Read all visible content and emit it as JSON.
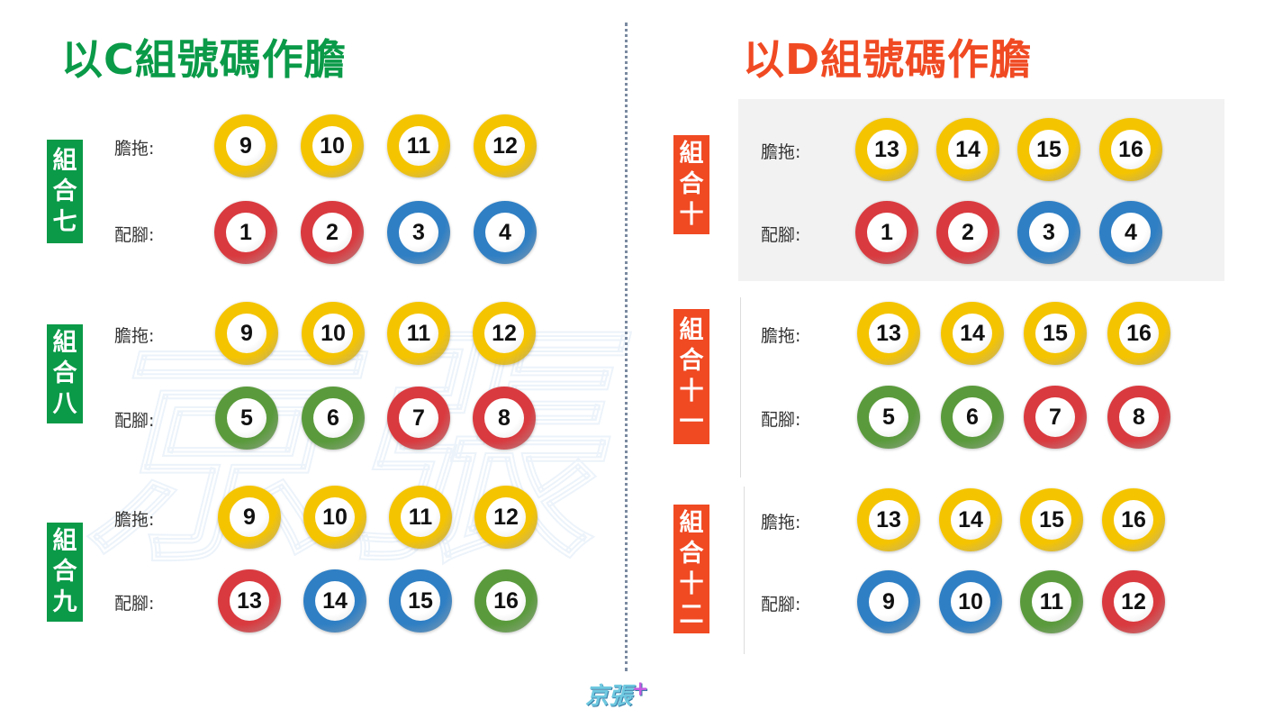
{
  "left": {
    "title": "以C組號碼作膽",
    "color": "#0a9a48",
    "groups": [
      {
        "label": "組合七",
        "dan": [
          9,
          10,
          11,
          12
        ],
        "pei": [
          1,
          2,
          3,
          4
        ],
        "dan_colors": [
          "yellow",
          "yellow",
          "yellow",
          "yellow"
        ],
        "pei_colors": [
          "red",
          "red",
          "blue",
          "blue"
        ]
      },
      {
        "label": "組合八",
        "dan": [
          9,
          10,
          11,
          12
        ],
        "pei": [
          5,
          6,
          7,
          8
        ],
        "dan_colors": [
          "yellow",
          "yellow",
          "yellow",
          "yellow"
        ],
        "pei_colors": [
          "green",
          "green",
          "red",
          "red"
        ]
      },
      {
        "label": "組合九",
        "dan": [
          9,
          10,
          11,
          12
        ],
        "pei": [
          13,
          14,
          15,
          16
        ],
        "dan_colors": [
          "yellow",
          "yellow",
          "yellow",
          "yellow"
        ],
        "pei_colors": [
          "red",
          "blue",
          "blue",
          "green"
        ]
      }
    ]
  },
  "right": {
    "title": "以D組號碼作膽",
    "color": "#f04a23",
    "groups": [
      {
        "label": "組合十",
        "dan": [
          13,
          14,
          15,
          16
        ],
        "pei": [
          1,
          2,
          3,
          4
        ],
        "dan_colors": [
          "yellow",
          "yellow",
          "yellow",
          "yellow"
        ],
        "pei_colors": [
          "red",
          "red",
          "blue",
          "blue"
        ]
      },
      {
        "label": "組合十一",
        "dan": [
          13,
          14,
          15,
          16
        ],
        "pei": [
          5,
          6,
          7,
          8
        ],
        "dan_colors": [
          "yellow",
          "yellow",
          "yellow",
          "yellow"
        ],
        "pei_colors": [
          "green",
          "green",
          "red",
          "red"
        ]
      },
      {
        "label": "組合十二",
        "dan": [
          13,
          14,
          15,
          16
        ],
        "pei": [
          9,
          10,
          11,
          12
        ],
        "dan_colors": [
          "yellow",
          "yellow",
          "yellow",
          "yellow"
        ],
        "pei_colors": [
          "blue",
          "blue",
          "green",
          "red"
        ]
      }
    ]
  },
  "row_labels": {
    "dan": "膽拖:",
    "pei": "配腳:"
  },
  "ball_colors": {
    "yellow": "#f5c400",
    "red": "#d93a3f",
    "blue": "#2f7fc4",
    "green": "#5a9a3c"
  },
  "logo": {
    "text": "京張",
    "plus": "+"
  }
}
